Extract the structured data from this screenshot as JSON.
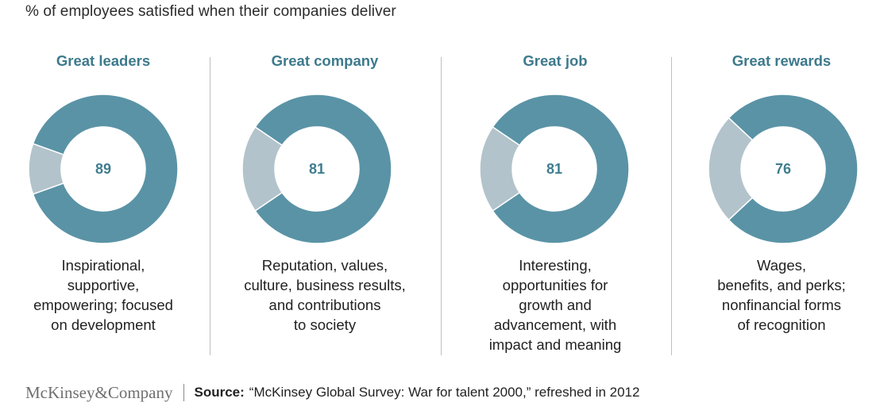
{
  "subtitle": "% of employees satisfied when their companies deliver",
  "colors": {
    "satisfied": "#5a93a6",
    "remainder": "#b3c3cb",
    "title": "#3d7a8c",
    "divider": "#bfbfbf"
  },
  "chart_data": [
    {
      "type": "pie",
      "title": "Great leaders",
      "values": [
        89,
        11
      ],
      "label": "89",
      "description": "Inspirational,\nsupportive,\nempowering; focused\non development"
    },
    {
      "type": "pie",
      "title": "Great company",
      "values": [
        81,
        19
      ],
      "label": "81",
      "description": "Reputation, values,\nculture, business results,\nand contributions\nto society"
    },
    {
      "type": "pie",
      "title": "Great job",
      "values": [
        81,
        19
      ],
      "label": "81",
      "description": "Interesting,\nopportunities for\ngrowth and\nadvancement, with\nimpact and meaning"
    },
    {
      "type": "pie",
      "title": "Great rewards",
      "values": [
        76,
        24
      ],
      "label": "76",
      "description": "Wages,\nbenefits, and perks;\nnonfinancial forms\nof recognition"
    }
  ],
  "footer": {
    "logo": "McKinsey&Company",
    "source_label": "Source:",
    "source_text": "“McKinsey Global Survey: War for talent 2000,” refreshed in 2012"
  }
}
